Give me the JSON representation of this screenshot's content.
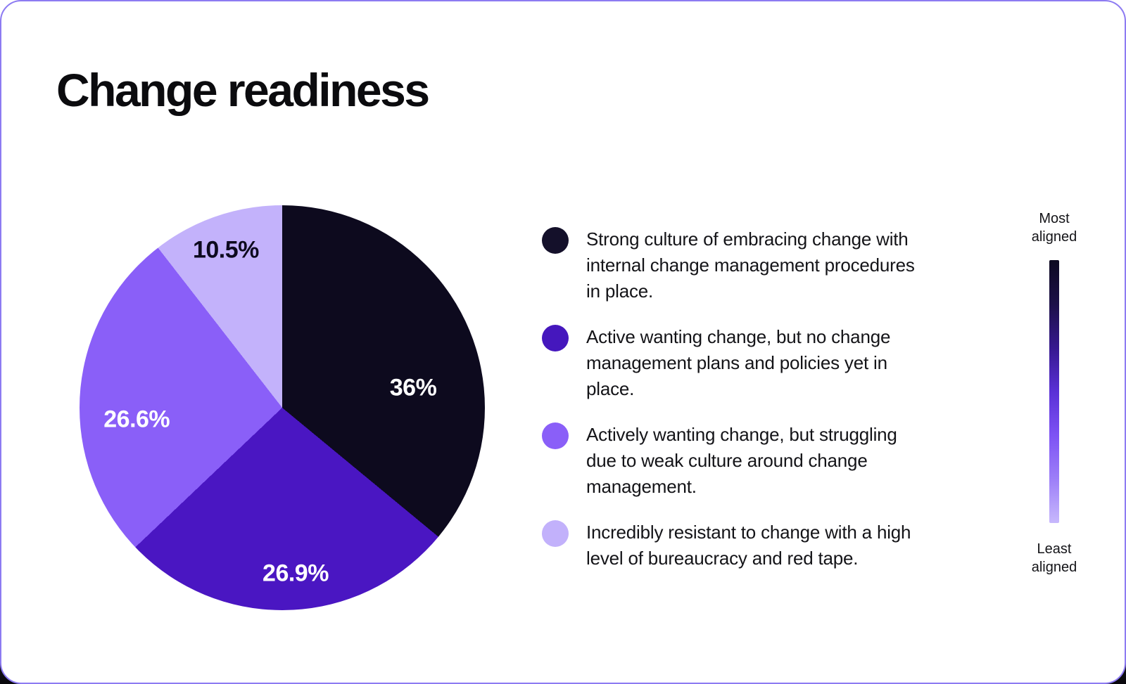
{
  "title": "Change readiness",
  "chart_data": {
    "type": "pie",
    "title": "Change readiness",
    "start_angle_deg": 0,
    "direction": "clockwise",
    "slices": [
      {
        "label": "36%",
        "value": 36.0,
        "color": "#0d0a1e",
        "label_color": "#ffffff",
        "category": "Strong culture of embracing change with internal change management procedures in place."
      },
      {
        "label": "26.9%",
        "value": 26.9,
        "color": "#4a16c2",
        "label_color": "#ffffff",
        "category": "Active wanting change, but no change management plans and policies yet in place."
      },
      {
        "label": "26.6%",
        "value": 26.6,
        "color": "#8a5ff8",
        "label_color": "#ffffff",
        "category": "Actively wanting change, but struggling due to weak culture around change management."
      },
      {
        "label": "10.5%",
        "value": 10.5,
        "color": "#c3b2fb",
        "label_color": "#0d0a1e",
        "category": "Incredibly resistant to change with a high level of bureaucracy and red tape."
      }
    ],
    "legend_position": "right"
  },
  "legend": {
    "items": [
      {
        "color": "#14102a",
        "text": "Strong culture of embracing change with internal change management procedures in place."
      },
      {
        "color": "#4517bd",
        "text": "Active wanting change, but no change management plans and policies yet in place."
      },
      {
        "color": "#8a5ff8",
        "text": "Actively wanting change, but struggling due to weak culture around change management."
      },
      {
        "color": "#c2b1fb",
        "text": "Incredibly resistant to change with a high level of bureaucracy and red tape."
      }
    ]
  },
  "scale": {
    "top_label": "Most\naligned",
    "bottom_label": "Least\naligned",
    "gradient_colors": [
      "#0d0920",
      "#1c1048",
      "#36188f",
      "#5a30d6",
      "#7d52f4",
      "#9d7ff8",
      "#c7b8fc"
    ]
  }
}
